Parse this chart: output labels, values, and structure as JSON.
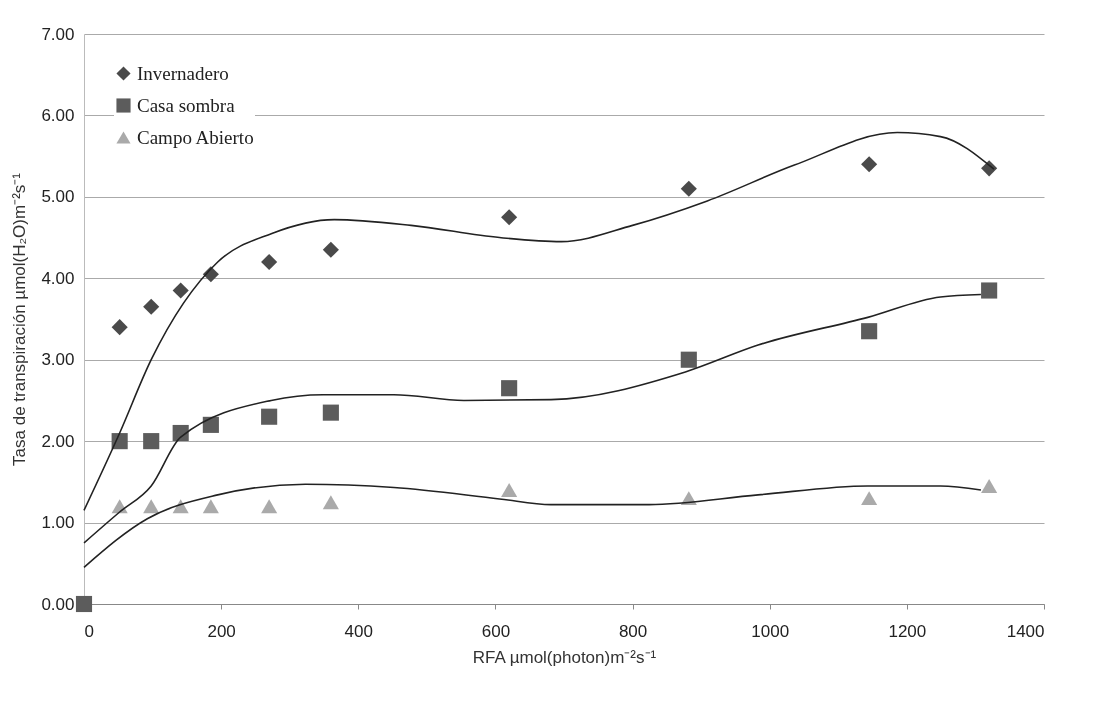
{
  "chart_data": {
    "type": "scatter",
    "xlabel": "RFA µmol(photon)m⁻²s⁻¹",
    "ylabel": "Tasa de transpiración µmol(H₂O)m⁻²s⁻¹",
    "x": [
      0,
      52,
      98,
      141,
      185,
      270,
      360,
      620,
      882,
      1145,
      1320
    ],
    "xlim": [
      0,
      1400
    ],
    "xticks": [
      0,
      200,
      400,
      600,
      800,
      1000,
      1200,
      1400
    ],
    "ylim": [
      0,
      7
    ],
    "yticks": [
      {
        "value": 0,
        "label": "0.00"
      },
      {
        "value": 1,
        "label": "1.00"
      },
      {
        "value": 2,
        "label": "2.00"
      },
      {
        "value": 3,
        "label": "3.00"
      },
      {
        "value": 4,
        "label": "4.00"
      },
      {
        "value": 5,
        "label": "5.00"
      },
      {
        "value": 6,
        "label": "6.00"
      },
      {
        "value": 7,
        "label": "7.00"
      }
    ],
    "grid": "y",
    "legend": "top left",
    "series": [
      {
        "name": "Invernadero",
        "color": "#4a4a4a",
        "marker": "diamond",
        "values": [
          null,
          3.4,
          3.65,
          3.85,
          4.05,
          4.2,
          4.35,
          4.75,
          5.1,
          5.4,
          5.35
        ]
      },
      {
        "name": "Casa sombra",
        "color": "#5c5c5c",
        "marker": "square",
        "values": [
          0,
          2.0,
          2.0,
          2.1,
          2.2,
          2.3,
          2.35,
          2.65,
          3.0,
          3.35,
          3.85
        ]
      },
      {
        "name": "Campo Abierto",
        "color": "#aaaaaa",
        "marker": "triangle",
        "values": [
          null,
          1.2,
          1.2,
          1.2,
          1.2,
          1.2,
          1.25,
          1.4,
          1.3,
          1.3,
          1.45
        ]
      },
      {
        "type": "line",
        "color": "#222222",
        "marker": "none",
        "x": [
          0,
          52,
          98,
          195,
          274,
          365,
          477,
          606,
          696,
          800,
          909,
          1036,
          1186,
          1249,
          1327
        ],
        "values": [
          1.15,
          2.1,
          3.0,
          4.2,
          4.55,
          4.72,
          4.65,
          4.5,
          4.45,
          4.65,
          4.95,
          5.39,
          5.79,
          5.74,
          5.34
        ]
      },
      {
        "type": "line",
        "color": "#222222",
        "marker": "none",
        "x": [
          0,
          52,
          98,
          141,
          273,
          349,
          452,
          554,
          681,
          877,
          983,
          1143,
          1249,
          1308
        ],
        "values": [
          0.75,
          1.13,
          1.45,
          2.05,
          2.5,
          2.57,
          2.57,
          2.5,
          2.51,
          2.85,
          3.18,
          3.52,
          3.77,
          3.8
        ]
      },
      {
        "type": "line",
        "color": "#222222",
        "marker": "none",
        "x": [
          0,
          93,
          195,
          323,
          452,
          606,
          681,
          824,
          983,
          1143,
          1249,
          1308
        ],
        "values": [
          0.45,
          1.05,
          1.34,
          1.47,
          1.43,
          1.29,
          1.22,
          1.22,
          1.34,
          1.45,
          1.45,
          1.4
        ]
      }
    ]
  }
}
